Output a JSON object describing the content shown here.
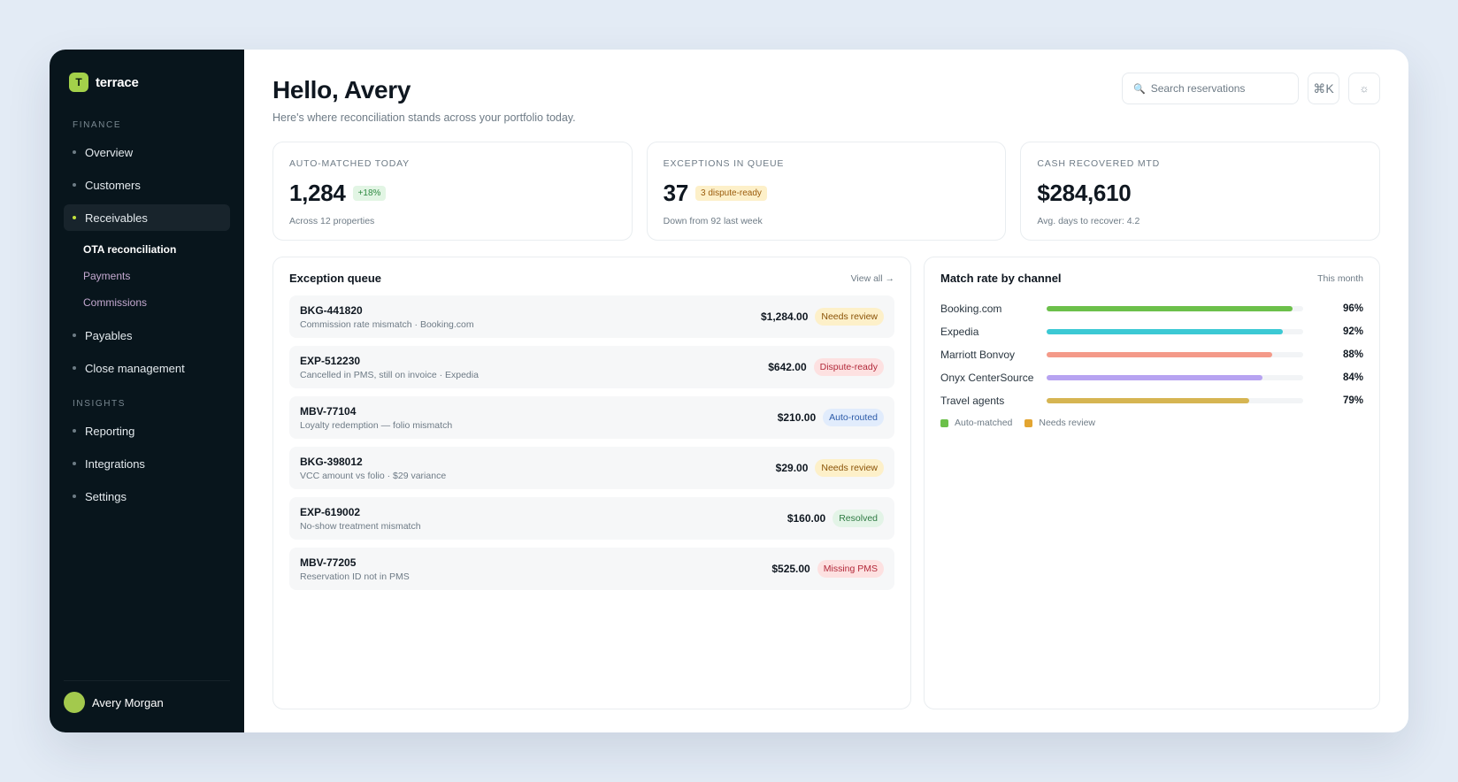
{
  "brand": {
    "logo_letter": "T",
    "name": "terrace"
  },
  "sidebar": {
    "finance_label": "FINANCE",
    "finance_items": [
      {
        "label": "Overview"
      },
      {
        "label": "Customers"
      },
      {
        "label": "Receivables"
      }
    ],
    "receivables_sub": [
      {
        "label": "OTA reconciliation"
      },
      {
        "label": "Payments"
      },
      {
        "label": "Commissions"
      }
    ],
    "finance_items_after": [
      {
        "label": "Payables"
      },
      {
        "label": "Close management"
      }
    ],
    "insights_label": "INSIGHTS",
    "insights_items": [
      {
        "label": "Reporting"
      },
      {
        "label": "Integrations"
      },
      {
        "label": "Settings"
      }
    ],
    "user_name": "Avery Morgan"
  },
  "header": {
    "greeting": "Hello, Avery",
    "subtitle": "Here's where reconciliation stands across your portfolio today.",
    "search_placeholder": "Search reservations",
    "shortcut": "⌘K"
  },
  "stats": [
    {
      "label": "AUTO-MATCHED TODAY",
      "value": "1,284",
      "badge": "+18%",
      "note": "Across 12 properties"
    },
    {
      "label": "EXCEPTIONS IN QUEUE",
      "value": "37",
      "badge": "3 dispute-ready",
      "note": "Down from 92 last week"
    },
    {
      "label": "CASH RECOVERED MTD",
      "value": "$284,610",
      "note": "Avg. days to recover: 4.2"
    }
  ],
  "queue": {
    "title": "Exception queue",
    "link": "View all →",
    "rows": [
      {
        "id": "BKG-441820",
        "desc": "Commission rate mismatch · Booking.com",
        "amount": "$1,284.00",
        "status": "Needs review"
      },
      {
        "id": "EXP-512230",
        "desc": "Cancelled in PMS, still on invoice · Expedia",
        "amount": "$642.00",
        "status": "Dispute-ready"
      },
      {
        "id": "MBV-77104",
        "desc": "Loyalty redemption — folio mismatch",
        "amount": "$210.00",
        "status": "Auto-routed"
      },
      {
        "id": "BKG-398012",
        "desc": "VCC amount vs folio · $29 variance",
        "amount": "$29.00",
        "status": "Needs review"
      },
      {
        "id": "EXP-619002",
        "desc": "No-show treatment mismatch",
        "amount": "$160.00",
        "status": "Resolved"
      },
      {
        "id": "MBV-77205",
        "desc": "Reservation ID not in PMS",
        "amount": "$525.00",
        "status": "Missing PMS"
      }
    ]
  },
  "channels": {
    "title": "Match rate by channel",
    "period": "This month",
    "rows": [
      {
        "name": "Booking.com",
        "pct": "96%",
        "value": 96,
        "color": "#6cc04a"
      },
      {
        "name": "Expedia",
        "pct": "92%",
        "value": 92,
        "color": "#3cc9d4"
      },
      {
        "name": "Marriott Bonvoy",
        "pct": "88%",
        "value": 88,
        "color": "#f49a89"
      },
      {
        "name": "Onyx CenterSource",
        "pct": "84%",
        "value": 84,
        "color": "#b7a3f1"
      },
      {
        "name": "Travel agents",
        "pct": "79%",
        "value": 79,
        "color": "#d6b552"
      }
    ],
    "legend": [
      {
        "label": "Auto-matched",
        "color": "#6cc04a"
      },
      {
        "label": "Needs review",
        "color": "#e3a531"
      }
    ]
  }
}
